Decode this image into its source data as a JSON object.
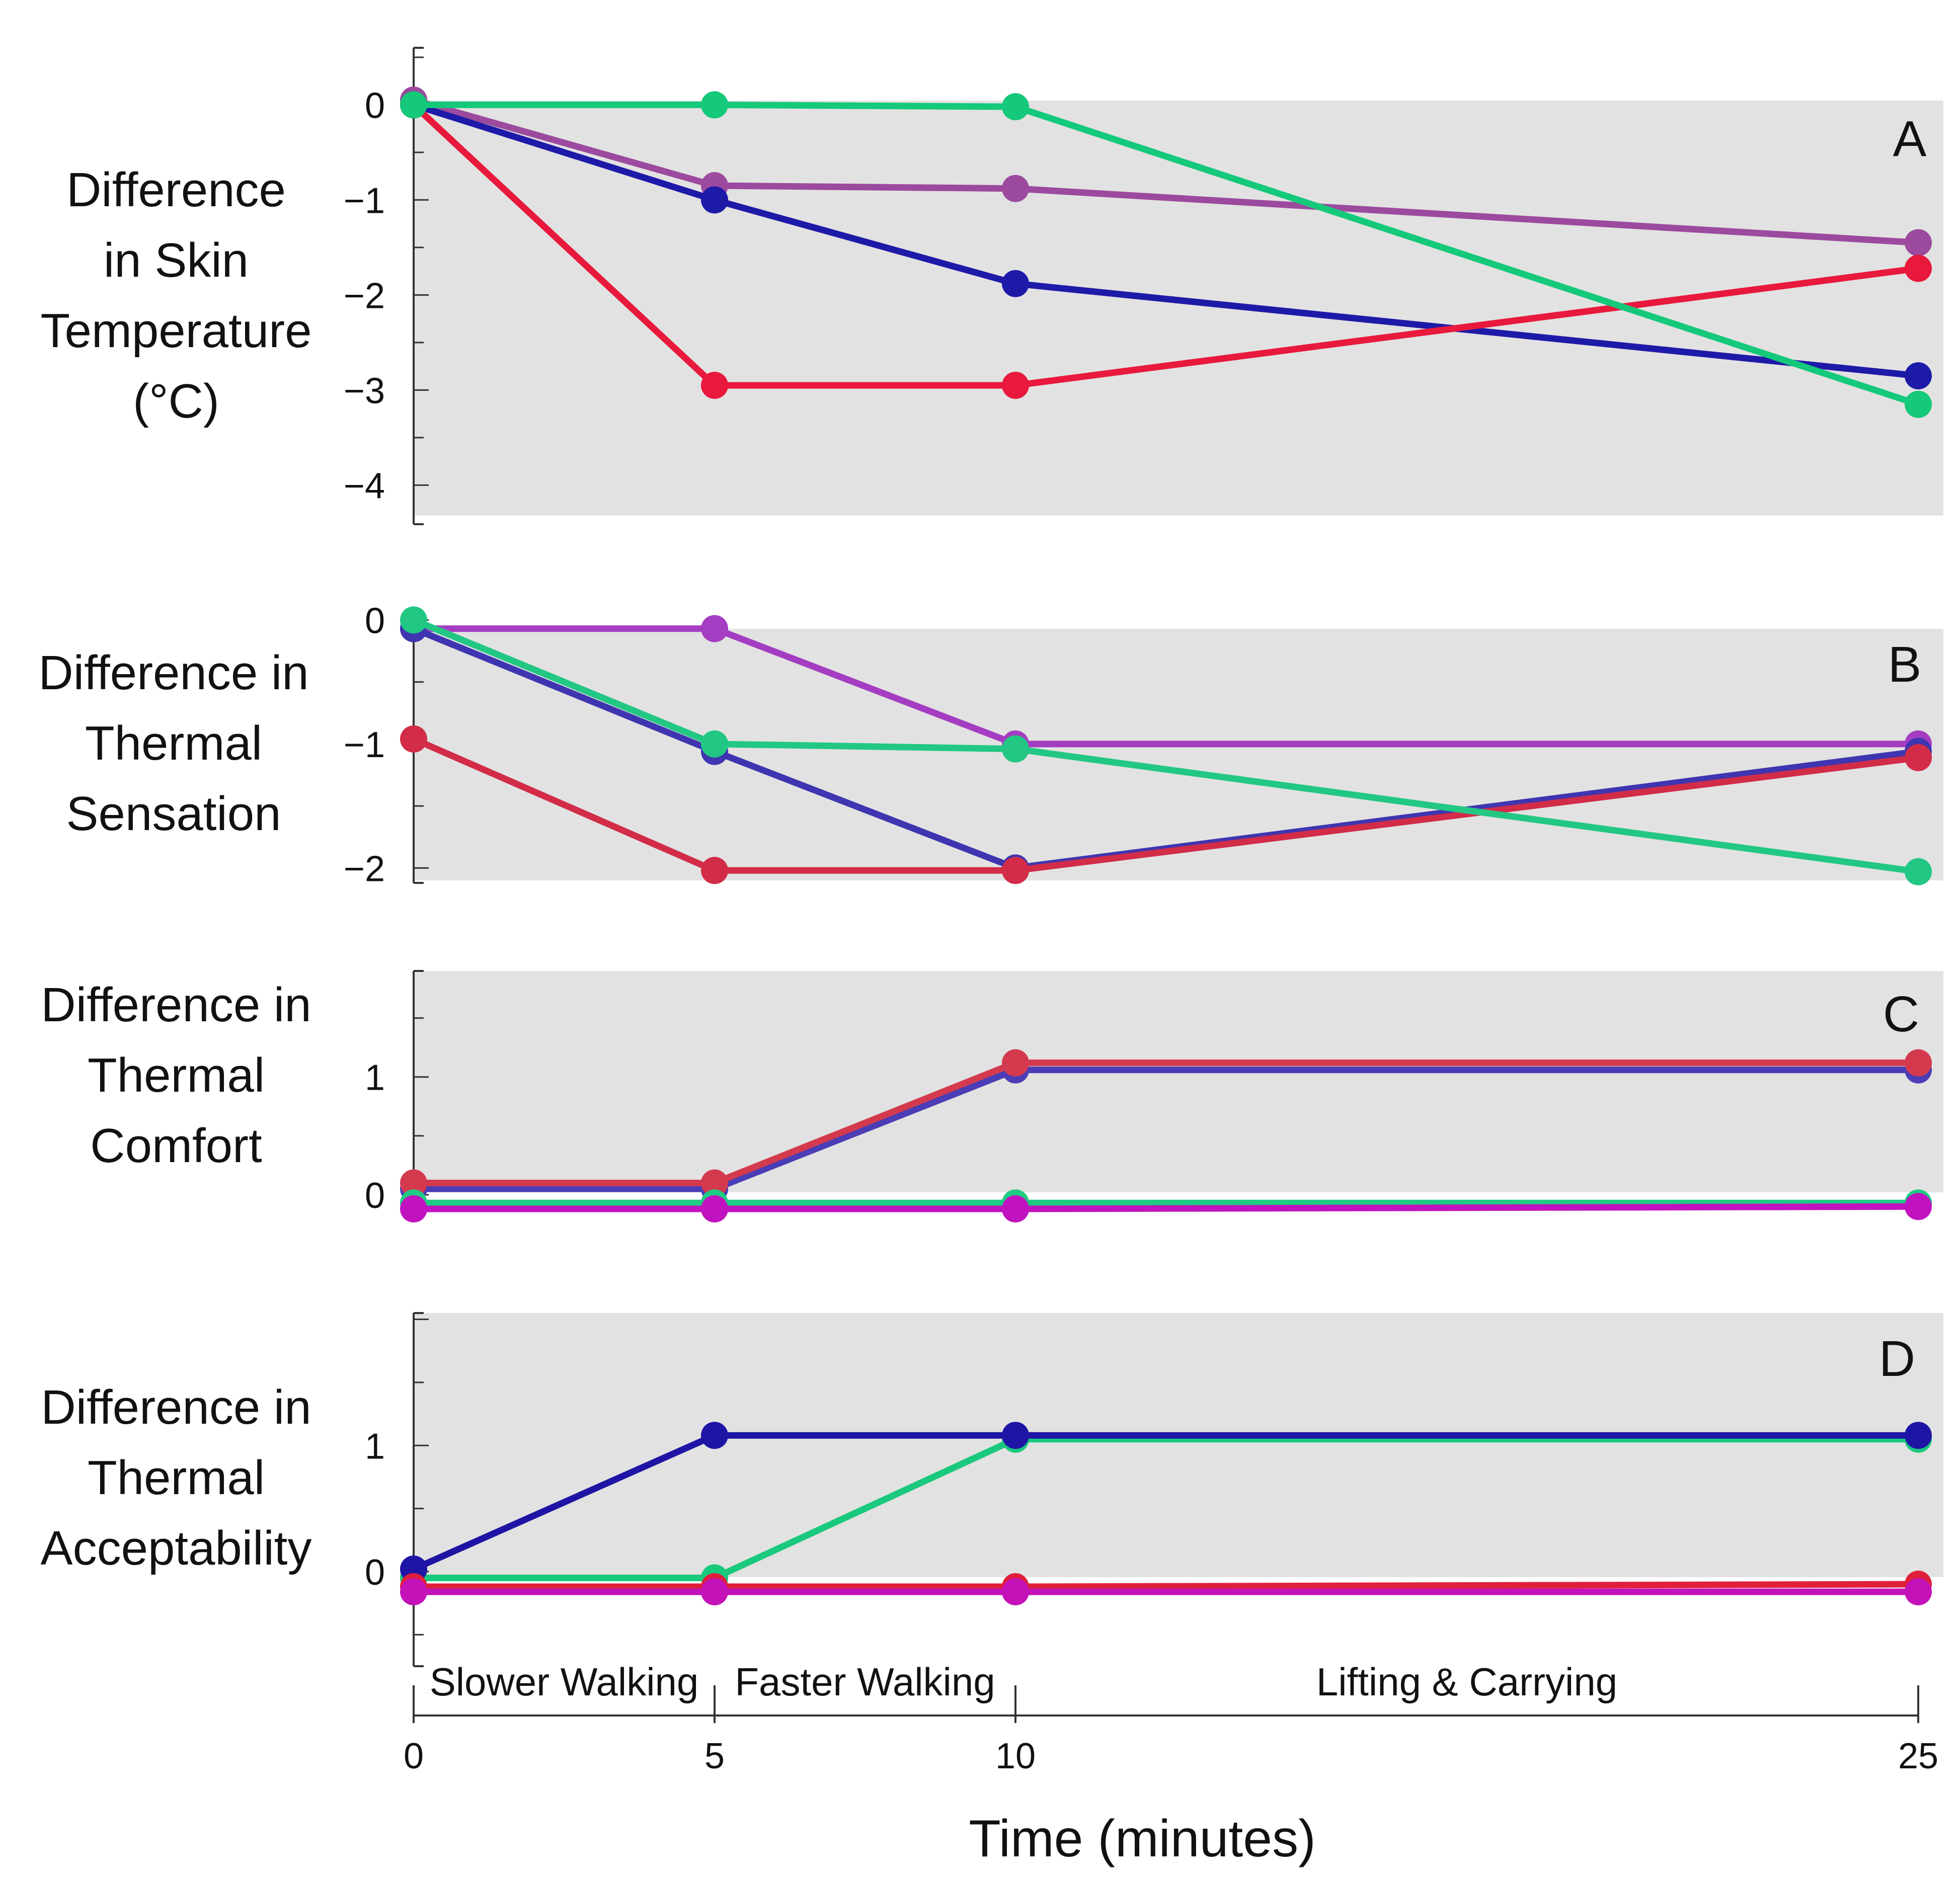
{
  "chart_data": [
    {
      "panel": "A",
      "type": "line",
      "ylabel": [
        "Difference",
        "in Skin",
        "Temperature",
        "(°C)"
      ],
      "yticks": [
        0,
        -1,
        -2,
        -3,
        -4
      ],
      "ytick_labels": [
        "0",
        "−1",
        "−2",
        "−3",
        "−4"
      ],
      "ylim": [
        -4.4,
        0.6
      ],
      "xlim": [
        0,
        25
      ],
      "x": [
        0,
        5,
        10,
        25
      ],
      "series": [
        {
          "name": "purple",
          "color": "#9B4A9E",
          "values": [
            0.05,
            -0.85,
            -0.88,
            -1.45
          ]
        },
        {
          "name": "blue",
          "color": "#1E1AA8",
          "values": [
            0.0,
            -1.0,
            -1.88,
            -2.85
          ]
        },
        {
          "name": "red",
          "color": "#E8193C",
          "values": [
            0.0,
            -2.95,
            -2.95,
            -1.72
          ]
        },
        {
          "name": "green",
          "color": "#14C97A",
          "values": [
            0.0,
            0.0,
            -0.02,
            -3.15
          ]
        }
      ]
    },
    {
      "panel": "B",
      "type": "line",
      "ylabel": [
        "Difference in",
        "Thermal",
        "Sensation"
      ],
      "yticks": [
        0,
        -1,
        -2
      ],
      "ytick_labels": [
        "0",
        "−1",
        "−2"
      ],
      "ylim": [
        -2.1,
        0.05
      ],
      "xlim": [
        0,
        25
      ],
      "x": [
        0,
        5,
        10,
        25
      ],
      "series": [
        {
          "name": "magenta",
          "color": "#A43DC2",
          "values": [
            -0.07,
            -0.07,
            -1.0,
            -1.0
          ]
        },
        {
          "name": "blue",
          "color": "#3F35B0",
          "values": [
            -0.07,
            -1.06,
            -2.0,
            -1.06
          ]
        },
        {
          "name": "red",
          "color": "#D22C48",
          "values": [
            -0.96,
            -2.02,
            -2.02,
            -1.11
          ]
        },
        {
          "name": "green",
          "color": "#22C784",
          "values": [
            0.0,
            -1.0,
            -1.04,
            -2.03
          ]
        }
      ]
    },
    {
      "panel": "C",
      "type": "line",
      "ylabel": [
        "Difference in",
        "Thermal",
        "Comfort"
      ],
      "yticks": [
        1,
        0
      ],
      "ytick_labels": [
        "1",
        "0"
      ],
      "ylim": [
        -0.15,
        1.9
      ],
      "xlim": [
        0,
        25
      ],
      "x": [
        0,
        5,
        10,
        25
      ],
      "series": [
        {
          "name": "blue",
          "color": "#4A3DB5",
          "values": [
            0.05,
            0.05,
            1.06,
            1.06
          ]
        },
        {
          "name": "red",
          "color": "#D43A4E",
          "values": [
            0.1,
            0.1,
            1.12,
            1.12
          ]
        },
        {
          "name": "green",
          "color": "#1FCB82",
          "values": [
            -0.07,
            -0.07,
            -0.07,
            -0.07
          ]
        },
        {
          "name": "magenta",
          "color": "#C012BE",
          "values": [
            -0.12,
            -0.12,
            -0.12,
            -0.1
          ]
        }
      ]
    },
    {
      "panel": "D",
      "type": "line",
      "ylabel": [
        "Difference in",
        "Thermal",
        "Acceptability"
      ],
      "yticks": [
        1,
        0
      ],
      "ytick_labels": [
        "1",
        "0"
      ],
      "ylim": [
        -0.75,
        2.05
      ],
      "xlim": [
        0,
        25
      ],
      "x": [
        0,
        5,
        10,
        25
      ],
      "xticks": [
        0,
        5,
        10,
        25
      ],
      "xtick_labels": [
        "0",
        "5",
        "10",
        "25"
      ],
      "series": [
        {
          "name": "green",
          "color": "#19C97C",
          "values": [
            -0.05,
            -0.05,
            1.05,
            1.05
          ]
        },
        {
          "name": "blue",
          "color": "#1E15A5",
          "values": [
            0.02,
            1.08,
            1.08,
            1.08
          ]
        },
        {
          "name": "red",
          "color": "#E01F3C",
          "values": [
            -0.12,
            -0.12,
            -0.12,
            -0.1
          ]
        },
        {
          "name": "magenta",
          "color": "#C312B8",
          "values": [
            -0.16,
            -0.16,
            -0.16,
            -0.16
          ]
        }
      ]
    }
  ],
  "phases": [
    "Slower Walking",
    "Faster Walking",
    "Lifting & Carrying"
  ],
  "xaxis_title": "Time (minutes)"
}
